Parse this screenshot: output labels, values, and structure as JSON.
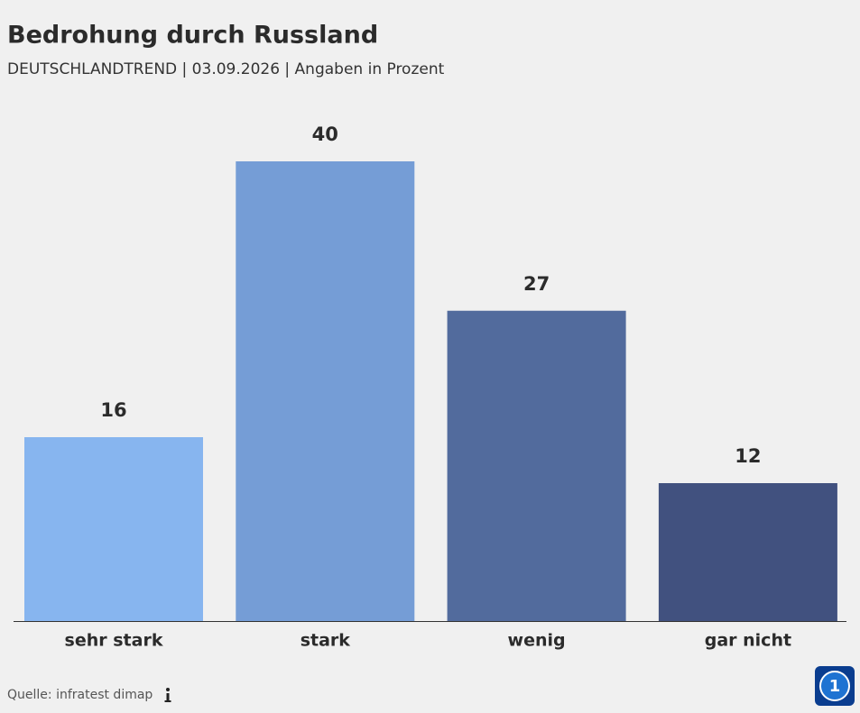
{
  "chart_data": {
    "type": "bar",
    "title": "Bedrohung durch Russland",
    "subtitle": "DEUTSCHLANDTREND | 03.09.2026 | Angaben in Prozent",
    "categories": [
      "sehr stark",
      "stark",
      "wenig",
      "gar nicht"
    ],
    "values": [
      16,
      40,
      27,
      12
    ],
    "colors": [
      "#87b5ef",
      "#759dd6",
      "#526b9d",
      "#41517f"
    ],
    "source": "Quelle: infratest dimap"
  }
}
